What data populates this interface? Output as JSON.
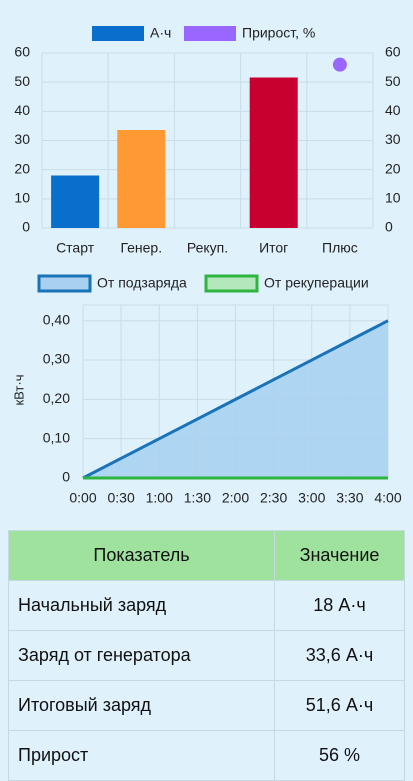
{
  "chart_data": [
    {
      "type": "bar",
      "categories": [
        "Старт",
        "Генер.",
        "Рекуп.",
        "Итог",
        "Плюс"
      ],
      "series": [
        {
          "name": "А·ч",
          "color": "#0a6fcc",
          "colors": [
            "#0a6fcc",
            "#ff9933",
            null,
            "#c8002f",
            null
          ],
          "values": [
            18,
            33.6,
            0,
            51.6,
            null
          ]
        },
        {
          "name": "Прирост, %",
          "color": "#9966ff",
          "type": "scatter",
          "axis": "y2",
          "values": [
            null,
            null,
            null,
            null,
            56
          ]
        }
      ],
      "ylim": [
        0,
        60
      ],
      "yticks": [
        0,
        10,
        20,
        30,
        40,
        50,
        60
      ],
      "y2lim": [
        0,
        60
      ],
      "y2ticks": [
        0,
        10,
        20,
        30,
        40,
        50,
        60
      ],
      "grid": true,
      "legend": "top"
    },
    {
      "type": "line",
      "x": [
        "0:00",
        "0:30",
        "1:00",
        "1:30",
        "2:00",
        "2:30",
        "3:00",
        "3:30",
        "4:00"
      ],
      "ylabel": "кВт·ч",
      "series": [
        {
          "name": "От подзаряда",
          "color": "#1a73b8",
          "fill": "#a9d1ef",
          "values": [
            0,
            0.05,
            0.1,
            0.15,
            0.2,
            0.25,
            0.3,
            0.35,
            0.4
          ]
        },
        {
          "name": "От рекуперации",
          "color": "#2fb440",
          "fill": "#b4e8bc",
          "values": [
            0,
            0,
            0,
            0,
            0,
            0,
            0,
            0,
            0
          ]
        }
      ],
      "ylim": [
        0,
        0.44
      ],
      "yticks": [
        0,
        {
          "value": 0.1,
          "label": "0,10"
        },
        {
          "value": 0.2,
          "label": "0,20"
        },
        {
          "value": 0.3,
          "label": "0,30"
        },
        {
          "value": 0.4,
          "label": "0,40"
        }
      ],
      "grid": true,
      "legend": "top"
    }
  ],
  "table": {
    "header": [
      "Показатель",
      "Значение"
    ],
    "rows": [
      [
        "Начальный заряд",
        "18 А·ч"
      ],
      [
        "Заряд от генератора",
        "33,6 А·ч"
      ],
      [
        "Итоговый заряд",
        "51,6 А·ч"
      ],
      [
        "Прирост",
        "56 %"
      ]
    ]
  }
}
